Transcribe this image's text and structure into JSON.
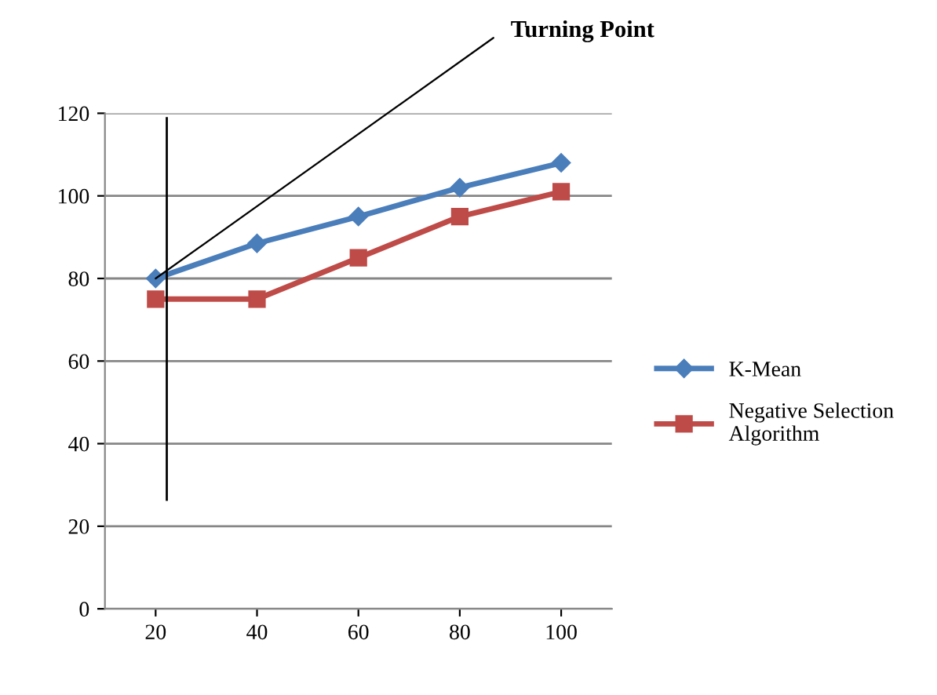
{
  "chart_data": {
    "type": "line",
    "categories": [
      "20",
      "40",
      "60",
      "80",
      "100"
    ],
    "series": [
      {
        "name": "K-Mean",
        "color": "#4a7ebb",
        "marker": "diamond",
        "values": [
          80,
          88.5,
          95,
          102,
          108
        ]
      },
      {
        "name": "Negative Selection Algorithm",
        "color": "#be4b48",
        "marker": "square",
        "values": [
          75,
          75,
          85,
          95,
          101
        ]
      }
    ],
    "ylim": [
      0,
      120
    ],
    "yticks": [
      0,
      20,
      40,
      60,
      80,
      100,
      120
    ],
    "grid": "y",
    "legend": "right",
    "annotations": [
      {
        "text": "Turning Point",
        "x": "20",
        "y": 80
      }
    ],
    "ref_lines": [
      {
        "axis": "x",
        "value": "20",
        "color": "#000000"
      }
    ]
  }
}
